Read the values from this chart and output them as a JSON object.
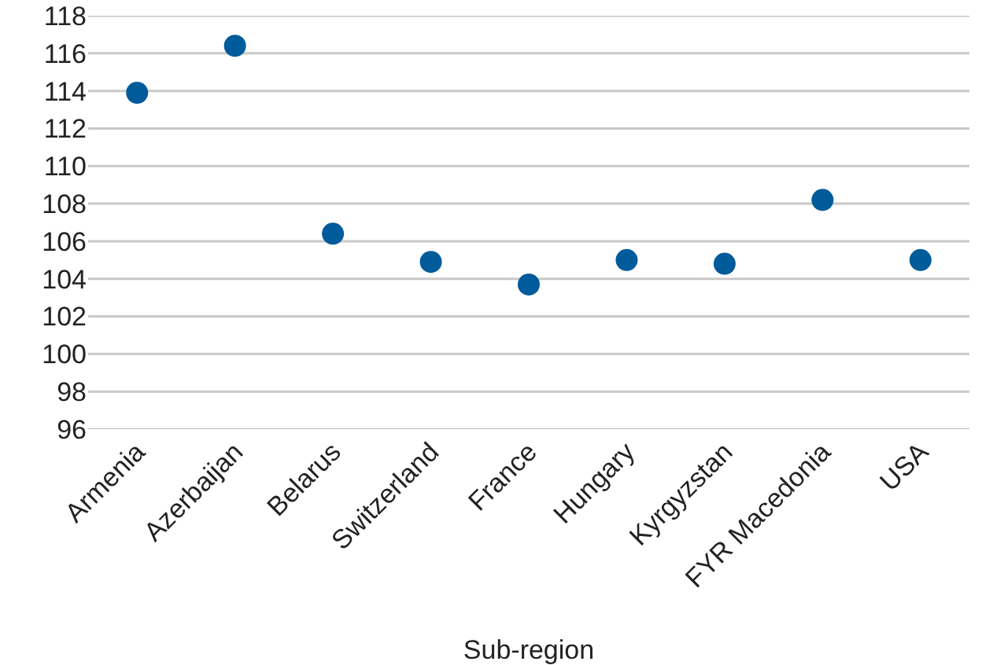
{
  "chart_data": {
    "type": "scatter",
    "xlabel": "Sub-region",
    "categories": [
      "Armenia",
      "Azerbaijan",
      "Belarus",
      "Switzerland",
      "France",
      "Hungary",
      "Kyrgyzstan",
      "FYR Macedonia",
      "USA"
    ],
    "values": [
      113.9,
      116.4,
      106.4,
      104.9,
      103.7,
      105.0,
      104.8,
      108.2,
      105.0
    ],
    "color": "#005b9a",
    "marker": "circle",
    "ylim": [
      96,
      118
    ],
    "yticks": [
      96,
      98,
      100,
      102,
      104,
      106,
      108,
      110,
      112,
      114,
      116,
      118
    ],
    "grid": "y"
  }
}
